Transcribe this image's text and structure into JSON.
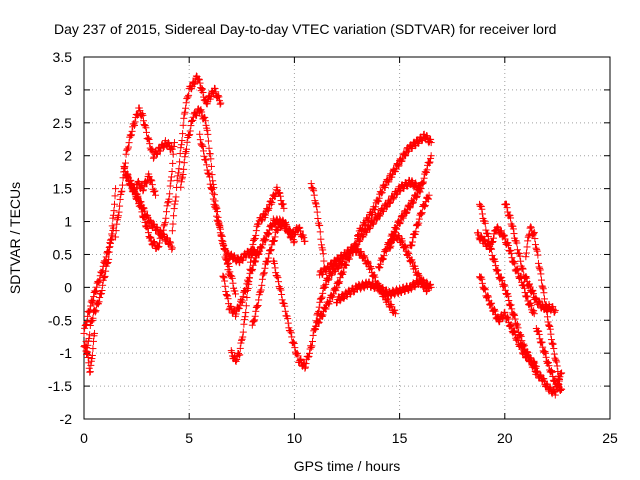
{
  "chart_data": {
    "type": "scatter",
    "title": "Day 237 of 2015, Sidereal Day-to-day VTEC variation (SDTVAR) for receiver lord",
    "xlabel": "GPS time / hours",
    "ylabel": "SDTVAR / TECUs",
    "xlim": [
      0,
      25
    ],
    "ylim": [
      -2,
      3.5
    ],
    "xticks": [
      0,
      5,
      10,
      15,
      20,
      25
    ],
    "xtick_labels": [
      "0",
      "5",
      "10",
      "15",
      "20",
      "25"
    ],
    "yticks": [
      -2,
      -1.5,
      -1,
      -0.5,
      0,
      0.5,
      1,
      1.5,
      2,
      2.5,
      3,
      3.5
    ],
    "ytick_labels": [
      "-2",
      "-1.5",
      "-1",
      "-0.5",
      "0",
      "0.5",
      "1",
      "1.5",
      "2",
      "2.5",
      "3",
      "3.5"
    ],
    "grid": true,
    "marker": "+",
    "marker_color": "#ff0000",
    "series": [
      {
        "x": [
          0.0,
          0.2,
          0.4,
          0.6,
          0.8,
          1.0,
          1.2,
          1.4
        ],
        "y": [
          -0.7,
          -0.4,
          -0.2,
          0.0,
          0.2,
          0.4,
          0.6,
          0.9
        ]
      },
      {
        "x": [
          0.0,
          0.15,
          0.3,
          0.45,
          0.6,
          0.8,
          1.0,
          1.2,
          1.4,
          1.5
        ],
        "y": [
          -0.9,
          -1.0,
          -0.6,
          -0.4,
          -0.3,
          -0.1,
          0.2,
          0.5,
          1.1,
          1.5
        ]
      },
      {
        "x": [
          0.1,
          0.2,
          0.3,
          0.4,
          0.5
        ],
        "y": [
          -0.8,
          -1.1,
          -1.3,
          -1.0,
          -0.7
        ]
      },
      {
        "x": [
          1.5,
          1.8,
          2.0,
          2.2,
          2.4,
          2.6,
          2.8,
          3.0,
          3.3,
          3.6,
          3.9,
          4.2
        ],
        "y": [
          0.8,
          1.5,
          2.0,
          2.3,
          2.5,
          2.7,
          2.6,
          2.3,
          2.0,
          2.1,
          2.2,
          2.1
        ]
      },
      {
        "x": [
          1.9,
          2.2,
          2.5,
          2.8,
          3.1,
          3.4,
          3.7,
          4.0,
          4.2
        ],
        "y": [
          1.8,
          1.6,
          1.4,
          1.2,
          1.0,
          0.9,
          0.8,
          0.7,
          0.6
        ]
      },
      {
        "x": [
          2.0,
          2.3,
          2.6,
          2.9,
          3.2,
          3.5,
          3.8,
          4.1,
          4.3
        ],
        "y": [
          1.7,
          1.5,
          1.3,
          1.0,
          0.7,
          0.6,
          0.9,
          1.5,
          2.2
        ]
      },
      {
        "x": [
          2.5,
          2.8,
          3.1,
          3.4
        ],
        "y": [
          1.6,
          1.5,
          1.7,
          1.4
        ]
      },
      {
        "x": [
          4.2,
          4.4,
          4.6,
          4.8,
          5.0,
          5.2,
          5.4,
          5.6,
          5.8,
          6.0,
          6.2,
          6.5
        ],
        "y": [
          0.9,
          1.5,
          2.1,
          2.7,
          3.0,
          3.1,
          3.2,
          3.0,
          2.8,
          2.9,
          3.0,
          2.8
        ]
      },
      {
        "x": [
          4.6,
          4.9,
          5.2,
          5.5,
          5.8,
          6.0,
          6.2,
          6.4,
          6.7,
          6.9
        ],
        "y": [
          1.5,
          2.2,
          2.6,
          2.7,
          2.5,
          2.0,
          1.4,
          1.0,
          0.5,
          0.2
        ]
      },
      {
        "x": [
          5.5,
          5.8,
          6.0,
          6.3,
          6.6,
          6.9,
          7.2
        ],
        "y": [
          2.3,
          1.9,
          1.6,
          1.1,
          0.7,
          0.3,
          -0.1
        ]
      },
      {
        "x": [
          6.6,
          6.9,
          7.2,
          7.5,
          7.8,
          8.1,
          8.4,
          8.7,
          9.0,
          9.3,
          9.6,
          9.9,
          10.2,
          10.5
        ],
        "y": [
          0.2,
          -0.3,
          -0.4,
          -0.2,
          0.1,
          0.4,
          0.6,
          0.8,
          1.0,
          1.0,
          0.9,
          0.8,
          0.9,
          0.7
        ]
      },
      {
        "x": [
          7.0,
          7.2,
          7.4,
          7.6,
          7.8,
          8.0,
          8.3,
          8.6,
          8.9,
          9.2,
          9.5
        ],
        "y": [
          -1.0,
          -1.1,
          -1.0,
          -0.6,
          0.0,
          0.6,
          1.0,
          1.1,
          1.3,
          1.5,
          1.2
        ]
      },
      {
        "x": [
          6.8,
          7.1,
          7.4,
          7.7,
          8.0,
          8.3
        ],
        "y": [
          0.5,
          0.45,
          0.4,
          0.5,
          0.55,
          0.5
        ]
      },
      {
        "x": [
          8.0,
          8.3,
          8.6,
          8.9,
          9.2,
          9.5,
          9.8,
          10.0
        ],
        "y": [
          -0.6,
          -0.2,
          0.3,
          0.6,
          0.9,
          1.0,
          0.8,
          0.7
        ]
      },
      {
        "x": [
          9.0,
          9.3,
          9.6,
          9.9,
          10.2,
          10.5,
          10.8,
          11.1,
          11.4,
          11.7,
          12.0,
          12.3
        ],
        "y": [
          0.4,
          0.0,
          -0.4,
          -0.8,
          -1.1,
          -1.2,
          -0.9,
          -0.4,
          0.0,
          0.2,
          0.3,
          0.4
        ]
      },
      {
        "x": [
          10.8,
          11.0,
          11.2,
          11.4
        ],
        "y": [
          1.6,
          1.3,
          0.9,
          0.4
        ]
      },
      {
        "x": [
          11.0,
          11.5,
          12.0,
          12.5,
          13.0,
          13.5,
          14.0,
          14.5,
          15.0,
          15.5,
          16.0
        ],
        "y": [
          -0.6,
          -0.3,
          0.0,
          0.4,
          0.7,
          0.9,
          1.1,
          1.3,
          1.5,
          1.6,
          1.5
        ]
      },
      {
        "x": [
          11.2,
          11.6,
          12.0,
          12.4,
          12.8,
          13.2,
          13.6,
          14.0,
          14.4,
          14.8
        ],
        "y": [
          0.2,
          0.3,
          0.4,
          0.5,
          0.6,
          0.5,
          0.3,
          0.0,
          -0.2,
          -0.4
        ]
      },
      {
        "x": [
          12.0,
          12.5,
          13.0,
          13.5,
          14.0,
          14.5,
          15.0,
          15.5,
          16.0,
          16.5
        ],
        "y": [
          -0.2,
          -0.1,
          0.0,
          0.05,
          0.0,
          -0.1,
          -0.05,
          0.0,
          0.1,
          0.0
        ]
      },
      {
        "x": [
          13.0,
          13.4,
          13.8,
          14.2,
          14.6,
          15.0,
          15.4,
          15.8,
          16.2,
          16.5
        ],
        "y": [
          0.8,
          1.0,
          1.2,
          1.5,
          1.7,
          1.9,
          2.1,
          2.2,
          2.3,
          2.2
        ]
      },
      {
        "x": [
          14.0,
          14.4,
          14.8,
          15.2,
          15.6,
          16.0,
          16.3,
          16.5
        ],
        "y": [
          0.3,
          0.6,
          0.9,
          1.1,
          1.3,
          1.5,
          1.8,
          2.0
        ]
      },
      {
        "x": [
          14.5,
          14.8,
          15.1,
          15.4,
          15.7,
          16.0,
          16.3
        ],
        "y": [
          0.6,
          0.8,
          0.7,
          0.5,
          0.3,
          0.1,
          -0.05
        ]
      },
      {
        "x": [
          15.5,
          15.8,
          16.1,
          16.4
        ],
        "y": [
          0.6,
          0.9,
          1.2,
          1.4
        ]
      },
      {
        "x": [
          18.7,
          19.0,
          19.3,
          19.6,
          19.9,
          20.2,
          20.5,
          20.8,
          21.1,
          21.4
        ],
        "y": [
          0.8,
          0.7,
          0.6,
          0.9,
          0.8,
          0.6,
          0.3,
          0.1,
          -0.2,
          -0.4
        ]
      },
      {
        "x": [
          18.8,
          19.1,
          19.4,
          19.7,
          20.0,
          20.3,
          20.6,
          20.9,
          21.2,
          21.5,
          21.8,
          22.1,
          22.4,
          22.7
        ],
        "y": [
          1.3,
          0.9,
          0.5,
          0.2,
          0.0,
          -0.3,
          -0.6,
          -0.9,
          -1.1,
          -1.3,
          -1.4,
          -1.55,
          -1.6,
          -1.3
        ]
      },
      {
        "x": [
          18.8,
          19.1,
          19.4,
          19.7,
          20.0,
          20.3,
          20.6,
          20.9,
          21.2,
          21.5
        ],
        "y": [
          0.2,
          -0.1,
          -0.3,
          -0.5,
          -0.4,
          -0.6,
          -0.8,
          -1.0,
          -1.1,
          -1.2
        ]
      },
      {
        "x": [
          20.0,
          20.3,
          20.6,
          20.9,
          21.2,
          21.5,
          21.8,
          22.1,
          22.4
        ],
        "y": [
          1.3,
          1.0,
          0.6,
          0.2,
          0.0,
          -0.2,
          -0.3,
          -0.3,
          -0.35
        ]
      },
      {
        "x": [
          21.0,
          21.2,
          21.4,
          21.6,
          21.8,
          22.0,
          22.3,
          22.6
        ],
        "y": [
          0.5,
          0.9,
          0.8,
          0.4,
          0.0,
          -0.4,
          -0.9,
          -1.4
        ]
      },
      {
        "x": [
          21.5,
          21.8,
          22.1,
          22.4,
          22.7
        ],
        "y": [
          -0.6,
          -0.9,
          -1.2,
          -1.45,
          -1.55
        ]
      }
    ]
  }
}
